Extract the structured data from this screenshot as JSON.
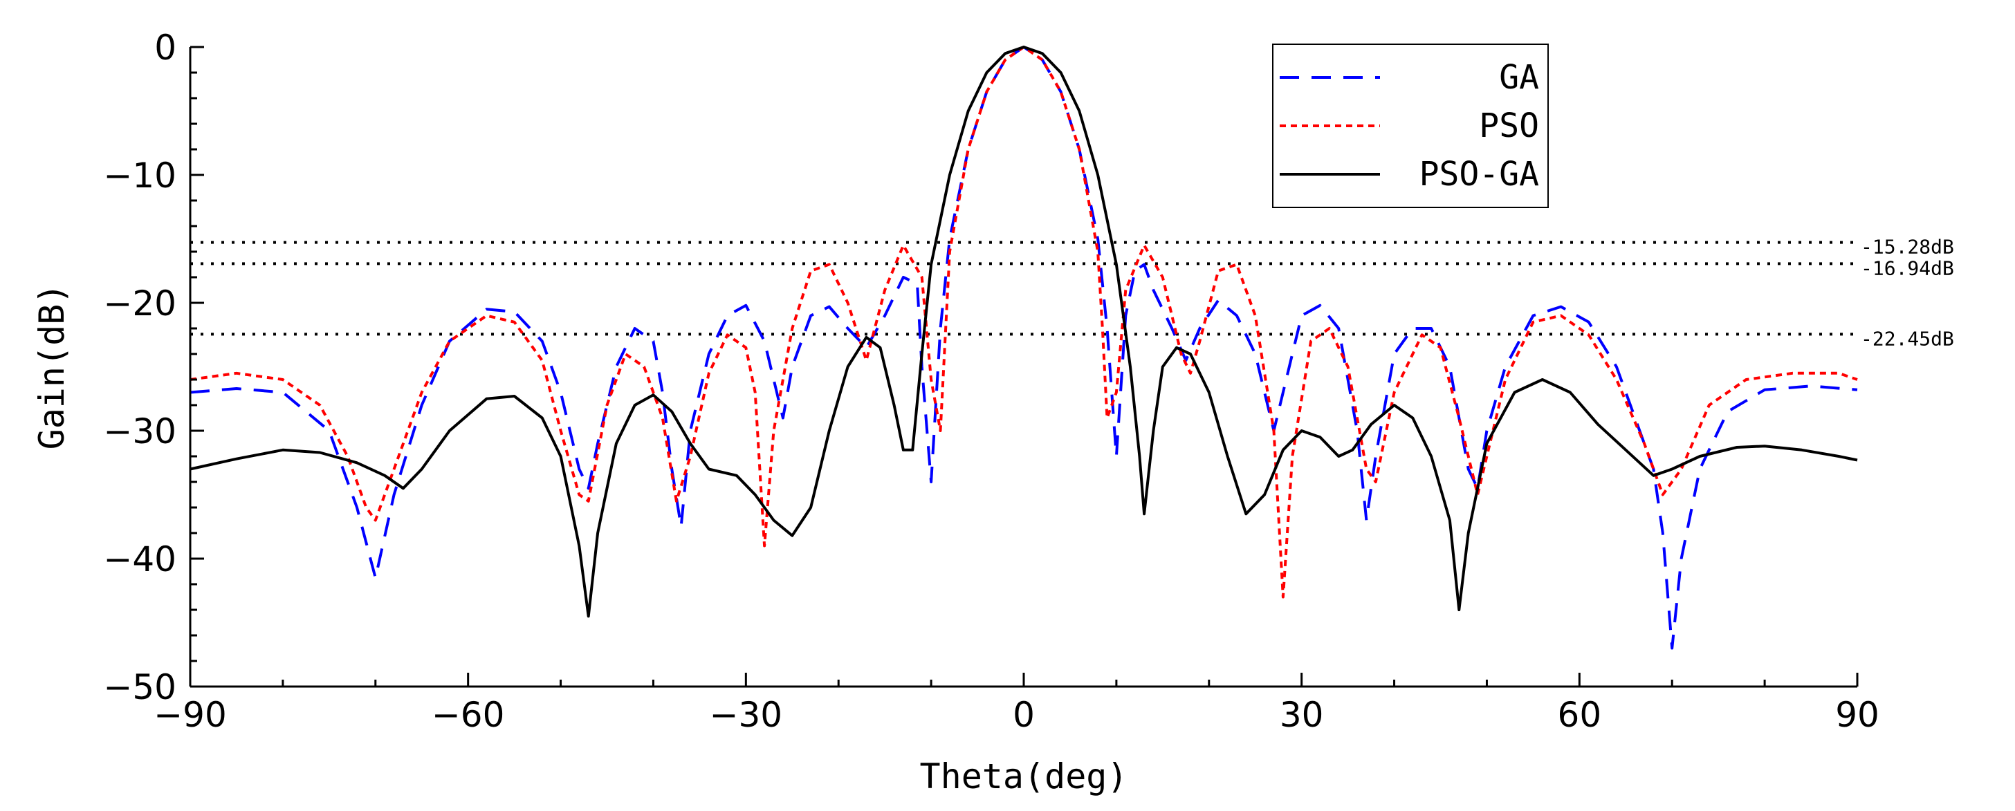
{
  "chart_data": {
    "type": "line",
    "title": "",
    "xlabel": "Theta(deg)",
    "ylabel": "Gain(dB)",
    "xlim": [
      -90,
      90
    ],
    "ylim": [
      -50,
      0
    ],
    "xticks": [
      -90,
      -60,
      -30,
      0,
      30,
      60,
      90
    ],
    "xtick_labels": [
      "−90",
      "−60",
      "−30",
      "0",
      "30",
      "60",
      "90"
    ],
    "yticks": [
      0,
      -10,
      -20,
      -30,
      -40,
      -50
    ],
    "ytick_labels": [
      "0",
      "−10",
      "−20",
      "−30",
      "−40",
      "−50"
    ],
    "reference_lines": [
      {
        "value": -15.28,
        "label": "-15.28dB"
      },
      {
        "value": -16.94,
        "label": "-16.94dB"
      },
      {
        "value": -22.45,
        "label": "-22.45dB"
      }
    ],
    "legend_position": "top-right",
    "series": [
      {
        "name": "GA",
        "color": "#0000ff",
        "style": "dashed",
        "points": [
          [
            -90,
            -27
          ],
          [
            -85,
            -26.7
          ],
          [
            -80,
            -27
          ],
          [
            -75,
            -30
          ],
          [
            -72,
            -36
          ],
          [
            -70,
            -41.5
          ],
          [
            -68,
            -35
          ],
          [
            -65,
            -28
          ],
          [
            -62,
            -23
          ],
          [
            -58,
            -20.5
          ],
          [
            -55,
            -20.7
          ],
          [
            -52,
            -23
          ],
          [
            -50,
            -27
          ],
          [
            -48,
            -33
          ],
          [
            -47,
            -34.5
          ],
          [
            -46,
            -31
          ],
          [
            -44,
            -25
          ],
          [
            -42,
            -22
          ],
          [
            -40,
            -23
          ],
          [
            -39,
            -27
          ],
          [
            -38,
            -33
          ],
          [
            -37,
            -37.5
          ],
          [
            -36,
            -30
          ],
          [
            -34,
            -24
          ],
          [
            -32,
            -21
          ],
          [
            -30,
            -20.2
          ],
          [
            -28,
            -23
          ],
          [
            -27,
            -26
          ],
          [
            -26,
            -29
          ],
          [
            -25,
            -25
          ],
          [
            -23,
            -21
          ],
          [
            -21,
            -20.3
          ],
          [
            -19,
            -22
          ],
          [
            -17,
            -23.5
          ],
          [
            -15,
            -21
          ],
          [
            -13,
            -18
          ],
          [
            -11.5,
            -18.5
          ],
          [
            -11,
            -25
          ],
          [
            -10,
            -34
          ],
          [
            -9,
            -22
          ],
          [
            -8,
            -15
          ],
          [
            -6,
            -8
          ],
          [
            -4,
            -3.5
          ],
          [
            -2,
            -1
          ],
          [
            0,
            0
          ],
          [
            2,
            -1
          ],
          [
            4,
            -3.5
          ],
          [
            6,
            -8
          ],
          [
            8,
            -15
          ],
          [
            9,
            -22
          ],
          [
            10,
            -32
          ],
          [
            11,
            -21
          ],
          [
            12,
            -17.5
          ],
          [
            13,
            -17
          ],
          [
            14,
            -19
          ],
          [
            16,
            -22
          ],
          [
            17.5,
            -24.5
          ],
          [
            19,
            -22
          ],
          [
            21,
            -19.8
          ],
          [
            23,
            -21
          ],
          [
            25,
            -24
          ],
          [
            27,
            -30
          ],
          [
            28,
            -27
          ],
          [
            30,
            -21
          ],
          [
            32,
            -20.2
          ],
          [
            34,
            -22
          ],
          [
            36,
            -30
          ],
          [
            37,
            -37
          ],
          [
            38,
            -32
          ],
          [
            40,
            -24
          ],
          [
            42,
            -22
          ],
          [
            44,
            -22
          ],
          [
            46,
            -25
          ],
          [
            48,
            -33
          ],
          [
            49,
            -34.5
          ],
          [
            50,
            -30
          ],
          [
            52,
            -25
          ],
          [
            55,
            -21
          ],
          [
            58,
            -20.3
          ],
          [
            61,
            -21.5
          ],
          [
            64,
            -25
          ],
          [
            66,
            -29
          ],
          [
            68,
            -33
          ],
          [
            69,
            -38
          ],
          [
            70,
            -47
          ],
          [
            71,
            -40
          ],
          [
            73,
            -33
          ],
          [
            76,
            -28.5
          ],
          [
            80,
            -26.8
          ],
          [
            85,
            -26.5
          ],
          [
            90,
            -26.8
          ]
        ]
      },
      {
        "name": "PSO",
        "color": "#ff0000",
        "style": "dotted",
        "points": [
          [
            -90,
            -26
          ],
          [
            -85,
            -25.5
          ],
          [
            -80,
            -26
          ],
          [
            -76,
            -28
          ],
          [
            -73,
            -32
          ],
          [
            -71,
            -36
          ],
          [
            -70,
            -37
          ],
          [
            -68,
            -33
          ],
          [
            -65,
            -27
          ],
          [
            -62,
            -23
          ],
          [
            -58,
            -21
          ],
          [
            -55,
            -21.5
          ],
          [
            -52,
            -24.5
          ],
          [
            -50,
            -30
          ],
          [
            -48,
            -35
          ],
          [
            -47,
            -35.5
          ],
          [
            -45,
            -28
          ],
          [
            -43,
            -24
          ],
          [
            -41,
            -25
          ],
          [
            -39,
            -29
          ],
          [
            -37.5,
            -35.5
          ],
          [
            -36,
            -32
          ],
          [
            -34,
            -25.5
          ],
          [
            -32,
            -22.5
          ],
          [
            -30,
            -23.5
          ],
          [
            -29,
            -27
          ],
          [
            -28,
            -39
          ],
          [
            -27,
            -30
          ],
          [
            -25,
            -22
          ],
          [
            -23,
            -17.5
          ],
          [
            -21,
            -17
          ],
          [
            -19,
            -20
          ],
          [
            -17,
            -24.5
          ],
          [
            -15,
            -19
          ],
          [
            -13,
            -15.5
          ],
          [
            -11,
            -18
          ],
          [
            -10,
            -26
          ],
          [
            -9,
            -30
          ],
          [
            -8,
            -16
          ],
          [
            -6,
            -8
          ],
          [
            -4,
            -3.5
          ],
          [
            -2,
            -1
          ],
          [
            0,
            0
          ],
          [
            2,
            -1
          ],
          [
            4,
            -3.5
          ],
          [
            6,
            -8
          ],
          [
            8,
            -16
          ],
          [
            8.5,
            -22
          ],
          [
            9,
            -29
          ],
          [
            10,
            -27
          ],
          [
            11,
            -19
          ],
          [
            13,
            -15.5
          ],
          [
            15,
            -18
          ],
          [
            17,
            -24
          ],
          [
            18,
            -25.5
          ],
          [
            19,
            -23
          ],
          [
            21,
            -17.5
          ],
          [
            23,
            -17
          ],
          [
            25,
            -21
          ],
          [
            27,
            -30
          ],
          [
            28,
            -43
          ],
          [
            29,
            -32
          ],
          [
            31,
            -23
          ],
          [
            33,
            -22
          ],
          [
            35,
            -25
          ],
          [
            37,
            -33
          ],
          [
            38,
            -34
          ],
          [
            40,
            -27
          ],
          [
            43,
            -22.5
          ],
          [
            45,
            -23.5
          ],
          [
            47,
            -29
          ],
          [
            49,
            -35
          ],
          [
            50,
            -32
          ],
          [
            52,
            -26
          ],
          [
            55,
            -21.5
          ],
          [
            58,
            -21
          ],
          [
            61,
            -22.5
          ],
          [
            64,
            -26
          ],
          [
            67,
            -31
          ],
          [
            69,
            -35
          ],
          [
            71,
            -33
          ],
          [
            74,
            -28
          ],
          [
            78,
            -26
          ],
          [
            83,
            -25.5
          ],
          [
            88,
            -25.5
          ],
          [
            90,
            -26
          ]
        ]
      },
      {
        "name": "PSO-GA",
        "color": "#000000",
        "style": "solid",
        "points": [
          [
            -90,
            -33
          ],
          [
            -85,
            -32.2
          ],
          [
            -80,
            -31.5
          ],
          [
            -76,
            -31.7
          ],
          [
            -72,
            -32.5
          ],
          [
            -69,
            -33.5
          ],
          [
            -67,
            -34.5
          ],
          [
            -65,
            -33
          ],
          [
            -62,
            -30
          ],
          [
            -58,
            -27.5
          ],
          [
            -55,
            -27.3
          ],
          [
            -52,
            -29
          ],
          [
            -50,
            -32
          ],
          [
            -48,
            -39
          ],
          [
            -47,
            -44.5
          ],
          [
            -46,
            -38
          ],
          [
            -44,
            -31
          ],
          [
            -42,
            -28
          ],
          [
            -40,
            -27.2
          ],
          [
            -38,
            -28.5
          ],
          [
            -36,
            -31
          ],
          [
            -34,
            -33
          ],
          [
            -31,
            -33.5
          ],
          [
            -29,
            -35
          ],
          [
            -27,
            -37
          ],
          [
            -25,
            -38.2
          ],
          [
            -23,
            -36
          ],
          [
            -21,
            -30
          ],
          [
            -19,
            -25
          ],
          [
            -17,
            -22.7
          ],
          [
            -15.5,
            -23.5
          ],
          [
            -14,
            -28
          ],
          [
            -13,
            -31.5
          ],
          [
            -12,
            -31.5
          ],
          [
            -11,
            -24
          ],
          [
            -10,
            -17
          ],
          [
            -8,
            -10
          ],
          [
            -6,
            -5
          ],
          [
            -4,
            -2
          ],
          [
            -2,
            -0.5
          ],
          [
            0,
            0
          ],
          [
            2,
            -0.5
          ],
          [
            4,
            -2
          ],
          [
            6,
            -5
          ],
          [
            8,
            -10
          ],
          [
            10,
            -17
          ],
          [
            11.5,
            -25
          ],
          [
            12.5,
            -32
          ],
          [
            13,
            -36.5
          ],
          [
            14,
            -30
          ],
          [
            15,
            -25
          ],
          [
            16.5,
            -23.5
          ],
          [
            18,
            -24
          ],
          [
            20,
            -27
          ],
          [
            22,
            -32
          ],
          [
            24,
            -36.5
          ],
          [
            26,
            -35
          ],
          [
            28,
            -31.5
          ],
          [
            30,
            -30
          ],
          [
            32,
            -30.5
          ],
          [
            34,
            -32
          ],
          [
            35.5,
            -31.5
          ],
          [
            37.5,
            -29.5
          ],
          [
            40,
            -28
          ],
          [
            42,
            -29
          ],
          [
            44,
            -32
          ],
          [
            46,
            -37
          ],
          [
            47,
            -44
          ],
          [
            48,
            -38
          ],
          [
            50,
            -31
          ],
          [
            53,
            -27
          ],
          [
            56,
            -26
          ],
          [
            59,
            -27
          ],
          [
            62,
            -29.5
          ],
          [
            65,
            -31.5
          ],
          [
            68,
            -33.5
          ],
          [
            70,
            -33
          ],
          [
            73,
            -32
          ],
          [
            77,
            -31.3
          ],
          [
            80,
            -31.2
          ],
          [
            84,
            -31.5
          ],
          [
            88,
            -32
          ],
          [
            90,
            -32.3
          ]
        ]
      }
    ]
  }
}
